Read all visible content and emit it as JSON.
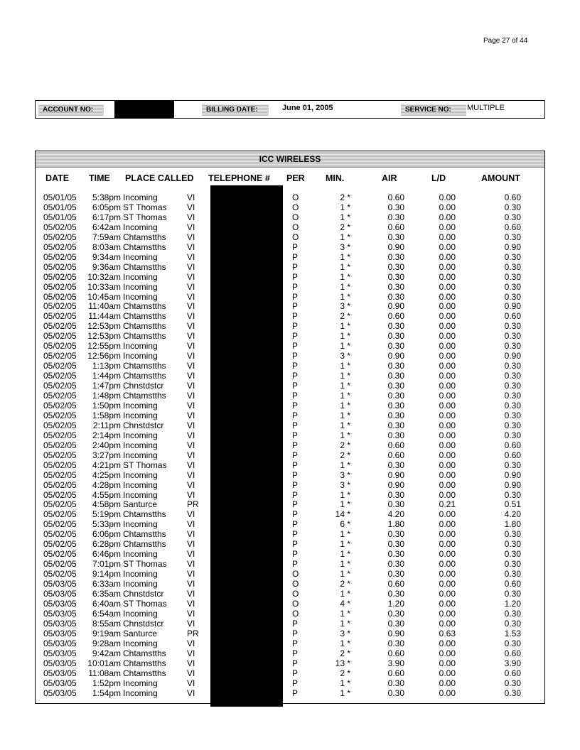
{
  "page_number": "Page 27  of  44",
  "header": {
    "account_label": "ACCOUNT NO:",
    "billing_date_label": "BILLING DATE:",
    "billing_date": "June  01, 2005",
    "service_label": "SERVICE NO:",
    "service_value": "MULTIPLE"
  },
  "table": {
    "title": "ICC WIRELESS",
    "columns": [
      "DATE",
      "TIME",
      "PLACE CALLED",
      "TELEPHONE #",
      "PER",
      "MIN.",
      "AIR",
      "L/D",
      "AMOUNT"
    ],
    "rows": [
      [
        "05/01/05",
        "5:38pm",
        "Incoming",
        "VI",
        "O",
        "2 *",
        "0.60",
        "0.00",
        "0.60"
      ],
      [
        "05/01/05",
        "6:05pm",
        "ST Thomas",
        "VI",
        "O",
        "1 *",
        "0.30",
        "0.00",
        "0.30"
      ],
      [
        "05/01/05",
        "6:17pm",
        "ST Thomas",
        "VI",
        "O",
        "1 *",
        "0.30",
        "0.00",
        "0.30"
      ],
      [
        "05/02/05",
        "6:42am",
        "Incoming",
        "VI",
        "O",
        "2 *",
        "0.60",
        "0.00",
        "0.60"
      ],
      [
        "05/02/05",
        "7:59am",
        "Chtamstths",
        "VI",
        "O",
        "1 *",
        "0.30",
        "0.00",
        "0.30"
      ],
      [
        "05/02/05",
        "8:03am",
        "Chtamstths",
        "VI",
        "P",
        "3 *",
        "0.90",
        "0.00",
        "0.90"
      ],
      [
        "05/02/05",
        "9:34am",
        "Incoming",
        "VI",
        "P",
        "1 *",
        "0.30",
        "0.00",
        "0.30"
      ],
      [
        "05/02/05",
        "9:36am",
        "Chtamstths",
        "VI",
        "P",
        "1 *",
        "0.30",
        "0.00",
        "0.30"
      ],
      [
        "05/02/05",
        "10:32am",
        "Incoming",
        "VI",
        "P",
        "1 *",
        "0.30",
        "0.00",
        "0.30"
      ],
      [
        "05/02/05",
        "10:33am",
        "Incoming",
        "VI",
        "P",
        "1 *",
        "0.30",
        "0.00",
        "0.30"
      ],
      [
        "05/02/05",
        "10:45am",
        "Incoming",
        "VI",
        "P",
        "1 *",
        "0.30",
        "0.00",
        "0.30"
      ],
      [
        "05/02/05",
        "11:40am",
        "Chtamstths",
        "VI",
        "P",
        "3 *",
        "0.90",
        "0.00",
        "0.90"
      ],
      [
        "05/02/05",
        "11:44am",
        "Chtamstths",
        "VI",
        "P",
        "2 *",
        "0.60",
        "0.00",
        "0.60"
      ],
      [
        "05/02/05",
        "12:53pm",
        "Chtamstths",
        "VI",
        "P",
        "1 *",
        "0.30",
        "0.00",
        "0.30"
      ],
      [
        "05/02/05",
        "12:53pm",
        "Chtamstths",
        "VI",
        "P",
        "1 *",
        "0.30",
        "0.00",
        "0.30"
      ],
      [
        "05/02/05",
        "12:55pm",
        "Incoming",
        "VI",
        "P",
        "1 *",
        "0.30",
        "0.00",
        "0.30"
      ],
      [
        "05/02/05",
        "12:56pm",
        "Incoming",
        "VI",
        "P",
        "3 *",
        "0.90",
        "0.00",
        "0.90"
      ],
      [
        "05/02/05",
        "1:13pm",
        "Chtamstths",
        "VI",
        "P",
        "1 *",
        "0.30",
        "0.00",
        "0.30"
      ],
      [
        "05/02/05",
        "1:44pm",
        "Chtamstths",
        "VI",
        "P",
        "1 *",
        "0.30",
        "0.00",
        "0.30"
      ],
      [
        "05/02/05",
        "1:47pm",
        "Chnstdstcr",
        "VI",
        "P",
        "1 *",
        "0.30",
        "0.00",
        "0.30"
      ],
      [
        "05/02/05",
        "1:48pm",
        "Chtamstths",
        "VI",
        "P",
        "1 *",
        "0.30",
        "0.00",
        "0.30"
      ],
      [
        "05/02/05",
        "1:50pm",
        "Incoming",
        "VI",
        "P",
        "1 *",
        "0.30",
        "0.00",
        "0.30"
      ],
      [
        "05/02/05",
        "1:58pm",
        "Incoming",
        "VI",
        "P",
        "1 *",
        "0.30",
        "0.00",
        "0.30"
      ],
      [
        "05/02/05",
        "2:11pm",
        "Chnstdstcr",
        "VI",
        "P",
        "1 *",
        "0.30",
        "0.00",
        "0.30"
      ],
      [
        "05/02/05",
        "2:14pm",
        "Incoming",
        "VI",
        "P",
        "1 *",
        "0.30",
        "0.00",
        "0.30"
      ],
      [
        "05/02/05",
        "2:40pm",
        "Incoming",
        "VI",
        "P",
        "2 *",
        "0.60",
        "0.00",
        "0.60"
      ],
      [
        "05/02/05",
        "3:27pm",
        "Incoming",
        "VI",
        "P",
        "2 *",
        "0.60",
        "0.00",
        "0.60"
      ],
      [
        "05/02/05",
        "4:21pm",
        "ST Thomas",
        "VI",
        "P",
        "1 *",
        "0.30",
        "0.00",
        "0.30"
      ],
      [
        "05/02/05",
        "4:25pm",
        "Incoming",
        "VI",
        "P",
        "3 *",
        "0.90",
        "0.00",
        "0.90"
      ],
      [
        "05/02/05",
        "4:28pm",
        "Incoming",
        "VI",
        "P",
        "3 *",
        "0.90",
        "0.00",
        "0.90"
      ],
      [
        "05/02/05",
        "4:55pm",
        "Incoming",
        "VI",
        "P",
        "1 *",
        "0.30",
        "0.00",
        "0.30"
      ],
      [
        "05/02/05",
        "4:58pm",
        "Santurce",
        "PR",
        "P",
        "1 *",
        "0.30",
        "0.21",
        "0.51"
      ],
      [
        "05/02/05",
        "5:19pm",
        "Chtamstths",
        "VI",
        "P",
        "14 *",
        "4.20",
        "0.00",
        "4.20"
      ],
      [
        "05/02/05",
        "5:33pm",
        "Incoming",
        "VI",
        "P",
        "6 *",
        "1.80",
        "0.00",
        "1.80"
      ],
      [
        "05/02/05",
        "6:06pm",
        "Chtamstths",
        "VI",
        "P",
        "1 *",
        "0.30",
        "0.00",
        "0.30"
      ],
      [
        "05/02/05",
        "6:28pm",
        "Chtamstths",
        "VI",
        "P",
        "1 *",
        "0.30",
        "0.00",
        "0.30"
      ],
      [
        "05/02/05",
        "6:46pm",
        "Incoming",
        "VI",
        "P",
        "1 *",
        "0.30",
        "0.00",
        "0.30"
      ],
      [
        "05/02/05",
        "7:01pm",
        "ST Thomas",
        "VI",
        "P",
        "1 *",
        "0.30",
        "0.00",
        "0.30"
      ],
      [
        "05/02/05",
        "9:14pm",
        "Incoming",
        "VI",
        "O",
        "1 *",
        "0.30",
        "0.00",
        "0.30"
      ],
      [
        "05/03/05",
        "6:33am",
        "Incoming",
        "VI",
        "O",
        "2 *",
        "0.60",
        "0.00",
        "0.60"
      ],
      [
        "05/03/05",
        "6:35am",
        "Chnstdstcr",
        "VI",
        "O",
        "1 *",
        "0.30",
        "0.00",
        "0.30"
      ],
      [
        "05/03/05",
        "6:40am",
        "ST Thomas",
        "VI",
        "O",
        "4 *",
        "1.20",
        "0.00",
        "1.20"
      ],
      [
        "05/03/05",
        "6:54am",
        "Incoming",
        "VI",
        "O",
        "1 *",
        "0.30",
        "0.00",
        "0.30"
      ],
      [
        "05/03/05",
        "8:55am",
        "Chnstdstcr",
        "VI",
        "P",
        "1 *",
        "0.30",
        "0.00",
        "0.30"
      ],
      [
        "05/03/05",
        "9:19am",
        "Santurce",
        "PR",
        "P",
        "3 *",
        "0.90",
        "0.63",
        "1.53"
      ],
      [
        "05/03/05",
        "9:28am",
        "Incoming",
        "VI",
        "P",
        "1 *",
        "0.30",
        "0.00",
        "0.30"
      ],
      [
        "05/03/05",
        "9:42am",
        "Chtamstths",
        "VI",
        "P",
        "2 *",
        "0.60",
        "0.00",
        "0.60"
      ],
      [
        "05/03/05",
        "10:01am",
        "Chtamstths",
        "VI",
        "P",
        "13 *",
        "3.90",
        "0.00",
        "3.90"
      ],
      [
        "05/03/05",
        "11:08am",
        "Chtamstths",
        "VI",
        "P",
        "2 *",
        "0.60",
        "0.00",
        "0.60"
      ],
      [
        "05/03/05",
        "1:52pm",
        "Incoming",
        "VI",
        "P",
        "1 *",
        "0.30",
        "0.00",
        "0.30"
      ],
      [
        "05/03/05",
        "1:54pm",
        "Incoming",
        "VI",
        "P",
        "1 *",
        "0.30",
        "0.00",
        "0.30"
      ]
    ]
  }
}
